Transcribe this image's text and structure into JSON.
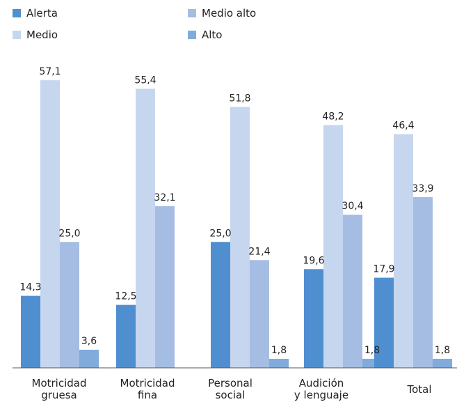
{
  "chart_data": {
    "type": "bar",
    "title": "",
    "xlabel": "",
    "ylabel": "",
    "ylim": [
      0,
      60
    ],
    "grid": false,
    "legend": "top-left",
    "categories": [
      [
        "Motricidad",
        "gruesa"
      ],
      [
        "Motricidad",
        "fina"
      ],
      [
        "Personal",
        "social"
      ],
      [
        "Audición",
        "y lenguaje"
      ],
      [
        "Total"
      ]
    ],
    "series": [
      {
        "name": "Alerta",
        "color": "#4f8fd0",
        "values": [
          14.3,
          12.5,
          25.0,
          19.6,
          17.9
        ],
        "labels": [
          "14,3",
          "12,5",
          "25,0",
          "19,6",
          "17,9"
        ]
      },
      {
        "name": "Medio",
        "color": "#c6d6ef",
        "values": [
          57.1,
          55.4,
          51.8,
          48.2,
          46.4
        ],
        "labels": [
          "57,1",
          "55,4",
          "51,8",
          "48,2",
          "46,4"
        ]
      },
      {
        "name": "Medio  alto",
        "color": "#a5bde3",
        "values": [
          25.0,
          32.1,
          21.4,
          30.4,
          33.9
        ],
        "labels": [
          "25,0",
          "32,1",
          "21,4",
          "30,4",
          "33,9"
        ]
      },
      {
        "name": "Alto",
        "color": "#80abdb",
        "values": [
          3.6,
          0,
          1.8,
          1.8,
          1.8
        ],
        "labels": [
          "3,6",
          "",
          "1,8",
          "1,8",
          "1,8"
        ]
      }
    ],
    "legend_order": [
      0,
      2,
      1,
      3
    ]
  }
}
